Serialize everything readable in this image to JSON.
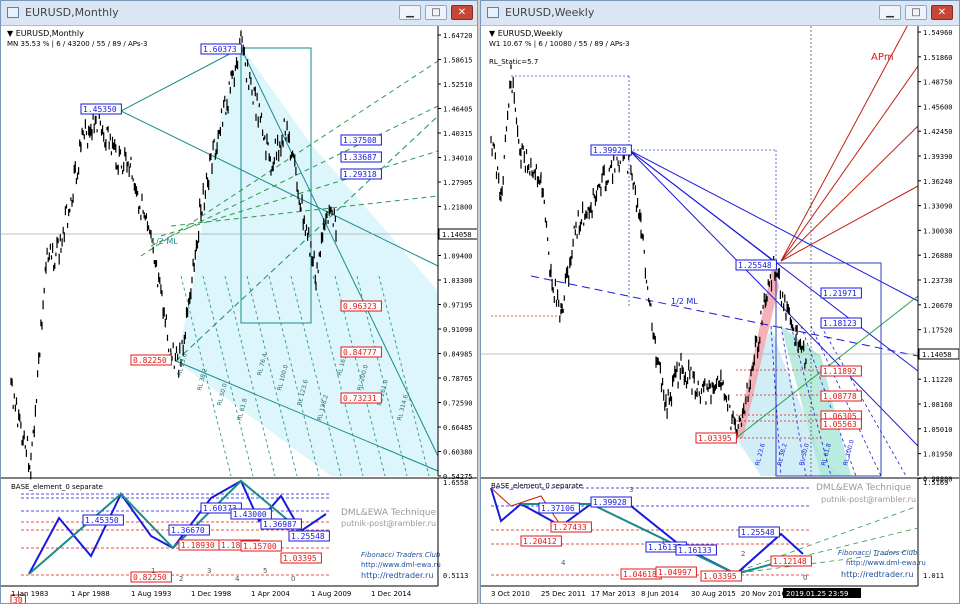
{
  "left": {
    "title": "EURUSD,Monthly",
    "header_symbol": "EURUSD,Monthly",
    "header_info": "MN  35.53 % | 6 / 43200 / 55 / 89 / APs-3",
    "price_axis": [
      "1.64720",
      "1.58615",
      "1.52510",
      "1.46405",
      "1.40315",
      "1.34010",
      "1.27905",
      "1.21800",
      "1.15695",
      "1.09400",
      "1.03300",
      "0.97195",
      "0.91090",
      "0.84985",
      "0.78765",
      "0.72590",
      "0.66485",
      "0.60380",
      "0.54275"
    ],
    "current_price": "1.14058",
    "boxes_blue": [
      "1.60373",
      "1.45350",
      "1.37508",
      "1.33687",
      "1.29318"
    ],
    "boxes_red": [
      "0.96323",
      "0.84777",
      "0.73231",
      "0.82250"
    ],
    "ml_label": "1/2 ML",
    "rl_labels": [
      "RL 23.6",
      "RL 38.2",
      "RL 50.0",
      "RL 61.8",
      "RL 76.4",
      "RL 100.0",
      "RL 123.6",
      "RL 138.2",
      "RL 161.8",
      "RL 200.0",
      "RL 261.8",
      "RL 314.6"
    ],
    "sub": {
      "title": "BASE_element_0 separate",
      "top_value": "1.6558",
      "bottom_value": "0.5113",
      "boxes_blue": [
        "1.60373",
        "1.45350",
        "1.36670",
        "1.43000",
        "1.36987",
        "1.25548"
      ],
      "boxes_red": [
        "1.18930",
        "1.18510",
        "1.15700",
        "1.03395",
        "0.82250",
        "30"
      ],
      "digit_labels": [
        "1",
        "2",
        "3",
        "4",
        "5",
        "0"
      ],
      "watermark1": "DML&EWA Technique",
      "watermark2": "putnik-post@rambler.ru",
      "club": "Fibonacci Traders Club",
      "site1": "http://www.dml-ewa.ru",
      "site2": "http://redtrader.ru",
      "x_axis": [
        "1 Jan 1983",
        "1 Apr 1988",
        "1 Aug 1993",
        "1 Dec 1998",
        "1 Apr 2004",
        "1 Aug 2009",
        "1 Dec 2014"
      ]
    }
  },
  "right": {
    "title": "EURUSD,Weekly",
    "header_symbol": "EURUSD,Weekly",
    "header_info": "W1  10.67 % | 6 / 10080 / 55 / 89 / APs-3",
    "rl_static": "RL_Static=5.7",
    "apm_label": "APm",
    "price_axis": [
      "1.54960",
      "1.51860",
      "1.48750",
      "1.45600",
      "1.42450",
      "1.39390",
      "1.36240",
      "1.33090",
      "1.30030",
      "1.26880",
      "1.23730",
      "1.20670",
      "1.17520",
      "1.14370",
      "1.11220",
      "1.08160",
      "1.05010",
      "1.01950",
      "0.98800"
    ],
    "current_price": "1.14058",
    "boxes_blue": [
      "1.39928",
      "1.25548",
      "1.21971",
      "1.18123"
    ],
    "boxes_red": [
      "1.11892",
      "1.08778",
      "1.06305",
      "1.05563",
      "1.03395"
    ],
    "ml_label": "1/2 ML",
    "rl_labels": [
      "RL 23.6",
      "RL 38.2",
      "RL 50.0",
      "RL 61.8",
      "RL 100.0"
    ],
    "sub": {
      "title": "BASE_element_0 separate",
      "top_value": "1.5169",
      "bottom_value": "1.011",
      "boxes_blue": [
        "1.37106",
        "1.39928",
        "1.16135",
        "1.16133",
        "1.25548"
      ],
      "boxes_red": [
        "1.27433",
        "1.20412",
        "1.04618",
        "1.04997",
        "1.03395",
        "1.12148"
      ],
      "digit_labels": [
        "3",
        "4",
        "1",
        "2",
        "0"
      ],
      "watermark1": "DML&EWA Technique",
      "watermark2": "putnik-post@rambler.ru",
      "club": "Fibonacci Traders Club",
      "site1": "http://www.dml-ewa.ru",
      "site2": "http://redtrader.ru",
      "x_axis": [
        "3 Oct 2010",
        "25 Dec 2011",
        "17 Mar 2013",
        "8 Jun 2014",
        "30 Aug 2015",
        "20 Nov 2016",
        "11"
      ],
      "time_badge": "2019.01.25 23:59"
    }
  },
  "colors": {
    "blue_box": "#1a1adc",
    "red_box": "#e01818",
    "teal": "#1a8a8a",
    "fill": "#d6f5fb",
    "dark_red": "#c02010"
  }
}
